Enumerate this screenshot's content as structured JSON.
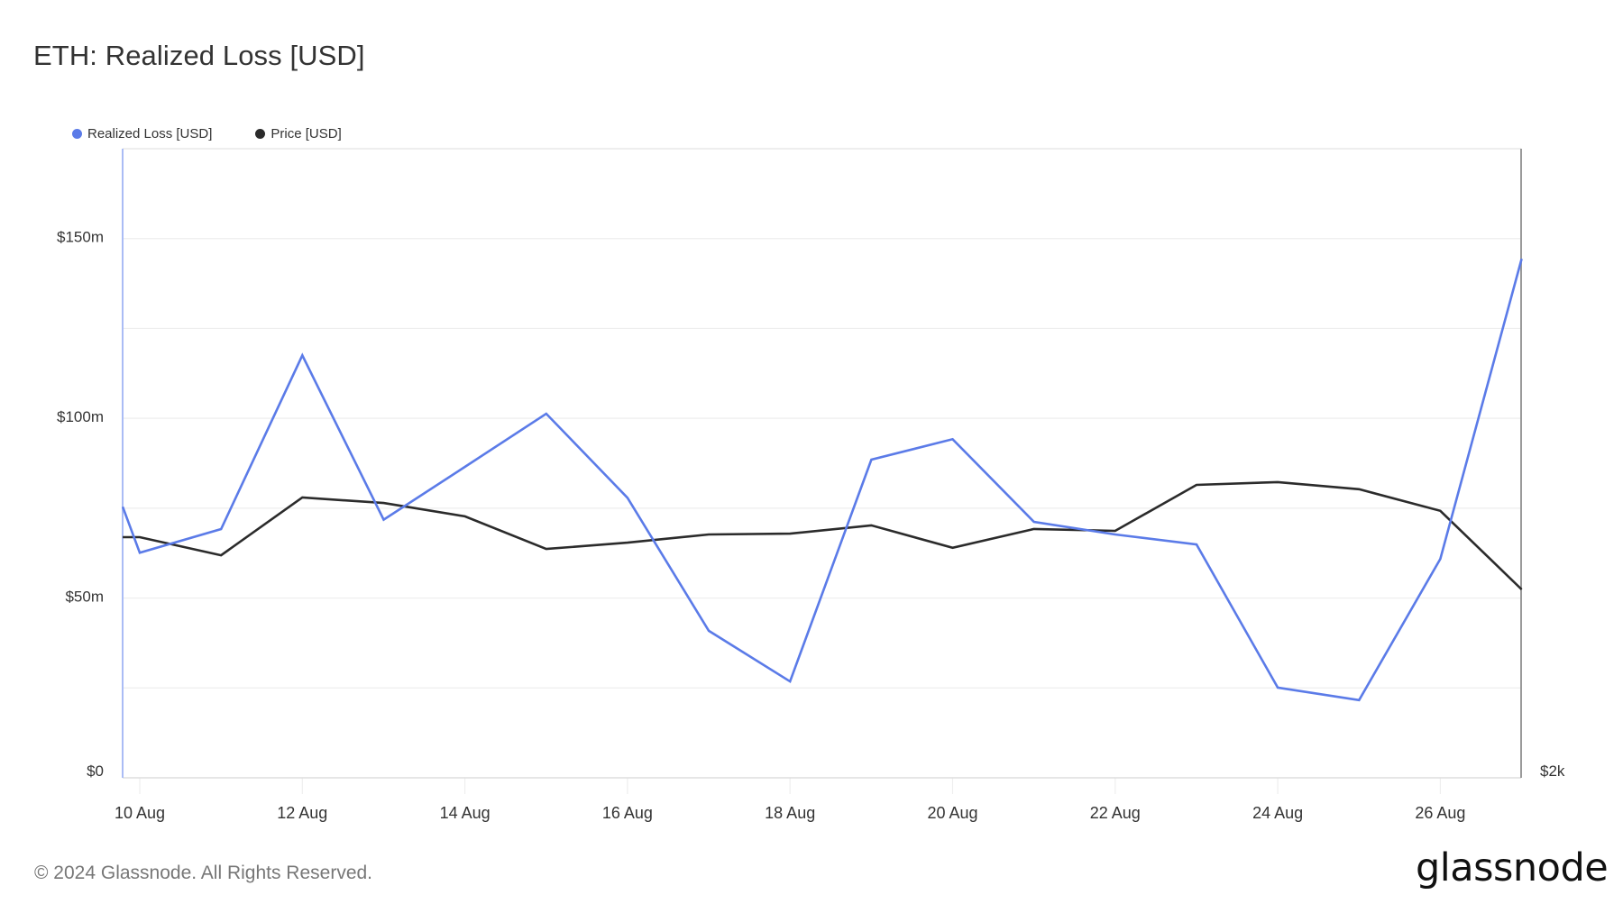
{
  "header": {
    "title": "ETH: Realized Loss [USD]"
  },
  "legend": [
    {
      "label": "Realized Loss [USD]",
      "color": "#5b7be8",
      "icon": "circle-dot-icon"
    },
    {
      "label": "Price [USD]",
      "color": "#2b2b2b",
      "icon": "circle-dot-icon"
    }
  ],
  "footer": {
    "copyright": "© 2024 Glassnode. All Rights Reserved.",
    "logo_text": "glassnode"
  },
  "colors": {
    "realized_loss": "#5b7be8",
    "price": "#2b2b2b",
    "left_axis": "#aabcf5",
    "right_axis": "#9a9a9a",
    "grid": "#eeeeee"
  },
  "chart_data": {
    "type": "line",
    "title": "ETH: Realized Loss [USD]",
    "xlabel": "",
    "ylabel": "Realized Loss [USD]",
    "y2label": "Price [USD]",
    "x_ticks": [
      "10 Aug",
      "12 Aug",
      "14 Aug",
      "16 Aug",
      "18 Aug",
      "20 Aug",
      "22 Aug",
      "24 Aug",
      "26 Aug"
    ],
    "y_ticks": [
      "$0",
      "$50m",
      "$100m",
      "$150m"
    ],
    "y_tick_values": [
      0,
      50,
      100,
      150
    ],
    "y2_ticks": [
      "$2k"
    ],
    "ylim": [
      0,
      175
    ],
    "y2lim": [
      2000,
      3600
    ],
    "grid": true,
    "grid_step": 25,
    "legend_position": "top-left",
    "x": [
      "09 Aug",
      "10 Aug",
      "11 Aug",
      "12 Aug",
      "13 Aug",
      "14 Aug",
      "15 Aug",
      "16 Aug",
      "17 Aug",
      "18 Aug",
      "19 Aug",
      "20 Aug",
      "21 Aug",
      "22 Aug",
      "23 Aug",
      "24 Aug",
      "25 Aug",
      "26 Aug",
      "27 Aug"
    ],
    "x_day": [
      9.79,
      10,
      11,
      12,
      13,
      14,
      15,
      16,
      17,
      18,
      19,
      20,
      21,
      22,
      23,
      24,
      25,
      26,
      27
    ],
    "series": [
      {
        "name": "Realized Loss [USD]",
        "unit": "USD millions",
        "axis": "left",
        "values": [
          75.4,
          62.6,
          69.2,
          117.5,
          71.8,
          86.5,
          101.3,
          77.9,
          40.9,
          26.8,
          88.5,
          94.2,
          71.2,
          67.7,
          64.9,
          25.1,
          21.6,
          60.9,
          144.4
        ]
      },
      {
        "name": "Price [USD]",
        "unit": "USD",
        "axis": "right",
        "values": [
          2612,
          2612,
          2566,
          2713,
          2699,
          2665,
          2582,
          2598,
          2619,
          2621,
          2642,
          2585,
          2633,
          2628,
          2745,
          2752,
          2734,
          2679,
          2479
        ]
      }
    ]
  }
}
